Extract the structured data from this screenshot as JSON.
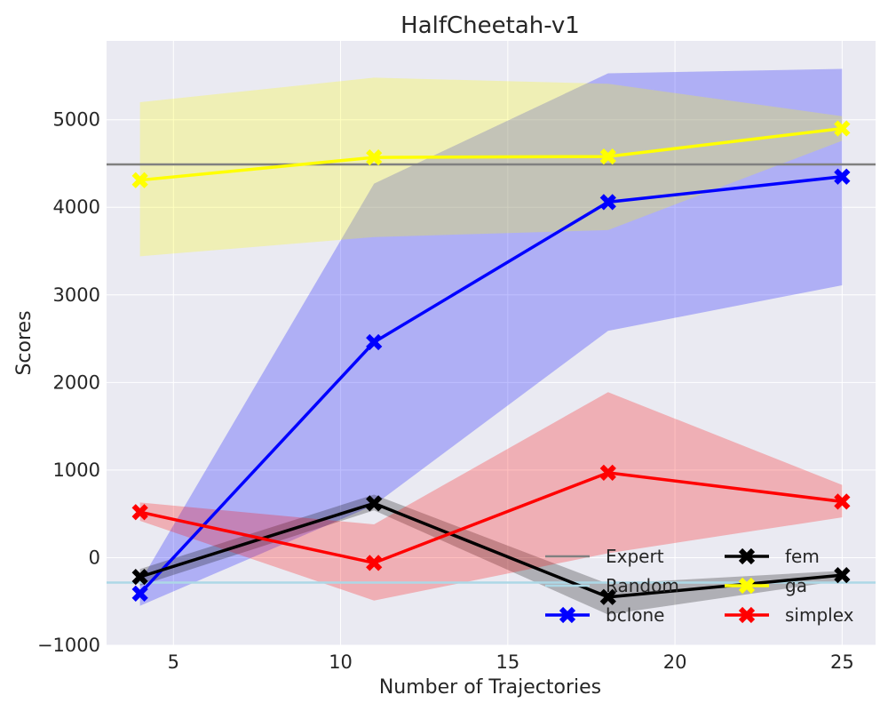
{
  "chart_data": {
    "type": "line",
    "title": "HalfCheetah-v1",
    "xlabel": "Number of Trajectories",
    "ylabel": "Scores",
    "xlim": [
      3,
      26
    ],
    "ylim": [
      -1000,
      5900
    ],
    "xticks": [
      5,
      10,
      15,
      20,
      25
    ],
    "yticks": [
      -1000,
      0,
      1000,
      2000,
      3000,
      4000,
      5000
    ],
    "grid": true,
    "legend_position": "lower-right",
    "x": [
      4,
      11,
      18,
      25
    ],
    "reference_lines": [
      {
        "name": "Expert",
        "y": 4490,
        "color": "#808080"
      },
      {
        "name": "Random",
        "y": -285,
        "color": "#add8e6"
      }
    ],
    "series": [
      {
        "name": "bclone",
        "color": "#0000ff",
        "values": [
          -410,
          2460,
          4060,
          4350
        ],
        "lower": [
          -550,
          600,
          2590,
          3110
        ],
        "upper": [
          -280,
          4270,
          5530,
          5580
        ]
      },
      {
        "name": "fem",
        "color": "#000000",
        "values": [
          -220,
          620,
          -450,
          -200
        ],
        "lower": [
          -320,
          540,
          -650,
          -260
        ],
        "upper": [
          -130,
          720,
          -300,
          -150
        ]
      },
      {
        "name": "ga",
        "color": "#ffff00",
        "values": [
          4310,
          4570,
          4580,
          4900
        ],
        "lower": [
          3440,
          3660,
          3740,
          4760
        ],
        "upper": [
          5200,
          5480,
          5410,
          5040
        ]
      },
      {
        "name": "simplex",
        "color": "#ff0000",
        "values": [
          520,
          -60,
          970,
          640
        ],
        "lower": [
          420,
          -490,
          50,
          460
        ],
        "upper": [
          630,
          380,
          1890,
          830
        ]
      }
    ]
  }
}
